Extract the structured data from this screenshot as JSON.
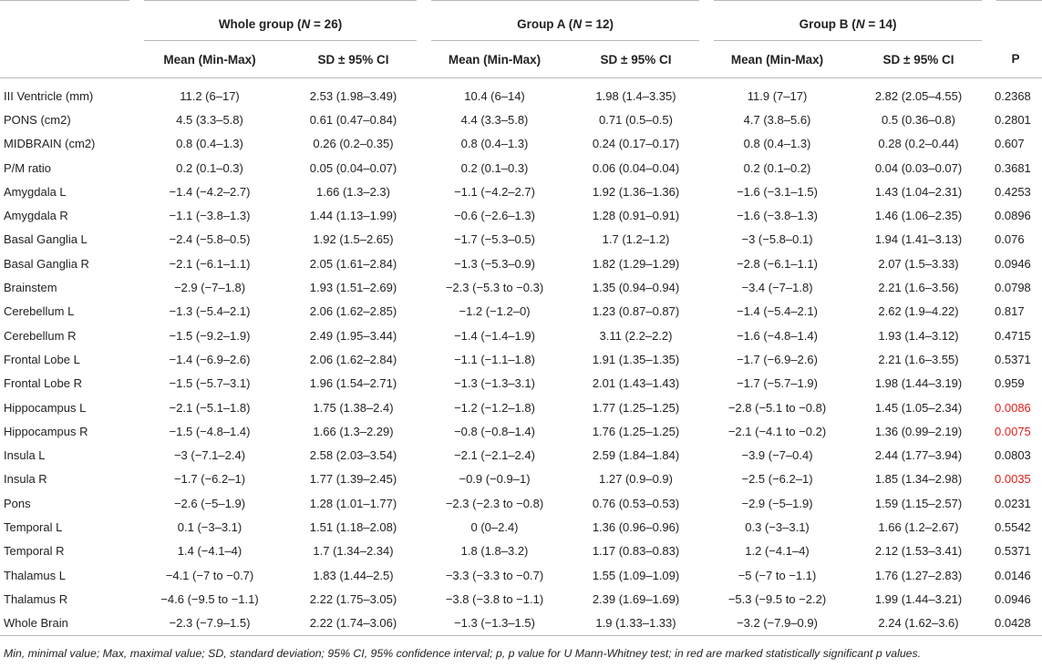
{
  "header": {
    "groups": [
      {
        "name": "Whole group (",
        "n_label": "N",
        "n_value": " = 26)"
      },
      {
        "name": "Group A (",
        "n_label": "N",
        "n_value": " = 12)"
      },
      {
        "name": "Group B (",
        "n_label": "N",
        "n_value": " = 14)"
      }
    ],
    "sub_mean": "Mean (Min-Max)",
    "sub_sd": "SD ± 95% CI",
    "sub_p": "P"
  },
  "rows": [
    {
      "label": "III Ventricle (mm)",
      "wg_mean": "11.2 (6–17)",
      "wg_sd": "2.53 (1.98–3.49)",
      "a_mean": "10.4 (6–14)",
      "a_sd": "1.98 (1.4–3.35)",
      "b_mean": "11.9 (7–17)",
      "b_sd": "2.82 (2.05–4.55)",
      "p": "0.2368",
      "sig": false
    },
    {
      "label": "PONS (cm2)",
      "wg_mean": "4.5 (3.3–5.8)",
      "wg_sd": "0.61 (0.47–0.84)",
      "a_mean": "4.4 (3.3–5.8)",
      "a_sd": "0.71 (0.5–0.5)",
      "b_mean": "4.7 (3.8–5.6)",
      "b_sd": "0.5 (0.36–0.8)",
      "p": "0.2801",
      "sig": false
    },
    {
      "label": "MIDBRAIN (cm2)",
      "wg_mean": "0.8 (0.4–1.3)",
      "wg_sd": "0.26 (0.2–0.35)",
      "a_mean": "0.8 (0.4–1.3)",
      "a_sd": "0.24 (0.17–0.17)",
      "b_mean": "0.8 (0.4–1.3)",
      "b_sd": "0.28 (0.2–0.44)",
      "p": "0.607",
      "sig": false
    },
    {
      "label": "P/M ratio",
      "wg_mean": "0.2 (0.1–0.3)",
      "wg_sd": "0.05 (0.04–0.07)",
      "a_mean": "0.2 (0.1–0.3)",
      "a_sd": "0.06 (0.04–0.04)",
      "b_mean": "0.2 (0.1–0.2)",
      "b_sd": "0.04 (0.03–0.07)",
      "p": "0.3681",
      "sig": false
    },
    {
      "label": "Amygdala L",
      "wg_mean": "−1.4 (−4.2–2.7)",
      "wg_sd": "1.66 (1.3–2.3)",
      "a_mean": "−1.1 (−4.2–2.7)",
      "a_sd": "1.92 (1.36–1.36)",
      "b_mean": "−1.6 (−3.1–1.5)",
      "b_sd": "1.43 (1.04–2.31)",
      "p": "0.4253",
      "sig": false
    },
    {
      "label": "Amygdala R",
      "wg_mean": "−1.1 (−3.8–1.3)",
      "wg_sd": "1.44 (1.13–1.99)",
      "a_mean": "−0.6 (−2.6–1.3)",
      "a_sd": "1.28 (0.91–0.91)",
      "b_mean": "−1.6 (−3.8–1.3)",
      "b_sd": "1.46 (1.06–2.35)",
      "p": "0.0896",
      "sig": false
    },
    {
      "label": "Basal Ganglia L",
      "wg_mean": "−2.4 (−5.8–0.5)",
      "wg_sd": "1.92 (1.5–2.65)",
      "a_mean": "−1.7 (−5.3–0.5)",
      "a_sd": "1.7 (1.2–1.2)",
      "b_mean": "−3 (−5.8–0.1)",
      "b_sd": "1.94 (1.41–3.13)",
      "p": "0.076",
      "sig": false
    },
    {
      "label": "Basal Ganglia R",
      "wg_mean": "−2.1 (−6.1–1.1)",
      "wg_sd": "2.05 (1.61–2.84)",
      "a_mean": "−1.3 (−5.3–0.9)",
      "a_sd": "1.82 (1.29–1.29)",
      "b_mean": "−2.8 (−6.1–1.1)",
      "b_sd": "2.07 (1.5–3.33)",
      "p": "0.0946",
      "sig": false
    },
    {
      "label": "Brainstem",
      "wg_mean": "−2.9 (−7–1.8)",
      "wg_sd": "1.93 (1.51–2.69)",
      "a_mean": "−2.3 (−5.3 to −0.3)",
      "a_sd": "1.35 (0.94–0.94)",
      "b_mean": "−3.4 (−7–1.8)",
      "b_sd": "2.21 (1.6–3.56)",
      "p": "0.0798",
      "sig": false
    },
    {
      "label": "Cerebellum L",
      "wg_mean": "−1.3 (−5.4–2.1)",
      "wg_sd": "2.06 (1.62–2.85)",
      "a_mean": "−1.2 (−1.2–0)",
      "a_sd": "1.23 (0.87–0.87)",
      "b_mean": "−1.4 (−5.4–2.1)",
      "b_sd": "2.62 (1.9–4.22)",
      "p": "0.817",
      "sig": false
    },
    {
      "label": "Cerebellum R",
      "wg_mean": "−1.5 (−9.2–1.9)",
      "wg_sd": "2.49 (1.95–3.44)",
      "a_mean": "−1.4 (−1.4–1.9)",
      "a_sd": "3.11 (2.2–2.2)",
      "b_mean": "−1.6 (−4.8–1.4)",
      "b_sd": "1.93 (1.4–3.12)",
      "p": "0.4715",
      "sig": false
    },
    {
      "label": "Frontal Lobe L",
      "wg_mean": "−1.4 (−6.9–2.6)",
      "wg_sd": "2.06 (1.62–2.84)",
      "a_mean": "−1.1 (−1.1–1.8)",
      "a_sd": "1.91 (1.35–1.35)",
      "b_mean": "−1.7 (−6.9–2.6)",
      "b_sd": "2.21 (1.6–3.55)",
      "p": "0.5371",
      "sig": false
    },
    {
      "label": "Frontal Lobe R",
      "wg_mean": "−1.5 (−5.7–3.1)",
      "wg_sd": "1.96 (1.54–2.71)",
      "a_mean": "−1.3 (−1.3–3.1)",
      "a_sd": "2.01 (1.43–1.43)",
      "b_mean": "−1.7 (−5.7–1.9)",
      "b_sd": "1.98 (1.44–3.19)",
      "p": "0.959",
      "sig": false
    },
    {
      "label": "Hippocampus L",
      "wg_mean": "−2.1 (−5.1–1.8)",
      "wg_sd": "1.75 (1.38–2.4)",
      "a_mean": "−1.2 (−1.2–1.8)",
      "a_sd": "1.77 (1.25–1.25)",
      "b_mean": "−2.8 (−5.1 to −0.8)",
      "b_sd": "1.45 (1.05–2.34)",
      "p": "0.0086",
      "sig": true
    },
    {
      "label": "Hippocampus R",
      "wg_mean": "−1.5 (−4.8–1.4)",
      "wg_sd": "1.66 (1.3–2.29)",
      "a_mean": "−0.8 (−0.8–1.4)",
      "a_sd": "1.76 (1.25–1.25)",
      "b_mean": "−2.1 (−4.1 to −0.2)",
      "b_sd": "1.36 (0.99–2.19)",
      "p": "0.0075",
      "sig": true
    },
    {
      "label": "Insula L",
      "wg_mean": "−3 (−7.1–2.4)",
      "wg_sd": "2.58 (2.03–3.54)",
      "a_mean": "−2.1 (−2.1–2.4)",
      "a_sd": "2.59 (1.84–1.84)",
      "b_mean": "−3.9 (−7–0.4)",
      "b_sd": "2.44 (1.77–3.94)",
      "p": "0.0803",
      "sig": false
    },
    {
      "label": "Insula R",
      "wg_mean": "−1.7 (−6.2–1)",
      "wg_sd": "1.77 (1.39–2.45)",
      "a_mean": "−0.9 (−0.9–1)",
      "a_sd": "1.27 (0.9–0.9)",
      "b_mean": "−2.5 (−6.2–1)",
      "b_sd": "1.85 (1.34–2.98)",
      "p": "0.0035",
      "sig": true
    },
    {
      "label": "Pons",
      "wg_mean": "−2.6 (−5–1.9)",
      "wg_sd": "1.28 (1.01–1.77)",
      "a_mean": "−2.3 (−2.3 to −0.8)",
      "a_sd": "0.76 (0.53–0.53)",
      "b_mean": "−2.9 (−5–1.9)",
      "b_sd": "1.59 (1.15–2.57)",
      "p": "0.0231",
      "sig": false
    },
    {
      "label": "Temporal L",
      "wg_mean": "0.1 (−3–3.1)",
      "wg_sd": "1.51 (1.18–2.08)",
      "a_mean": "0 (0–2.4)",
      "a_sd": "1.36 (0.96–0.96)",
      "b_mean": "0.3 (−3–3.1)",
      "b_sd": "1.66 (1.2–2.67)",
      "p": "0.5542",
      "sig": false
    },
    {
      "label": "Temporal R",
      "wg_mean": "1.4 (−4.1–4)",
      "wg_sd": "1.7 (1.34–2.34)",
      "a_mean": "1.8 (1.8–3.2)",
      "a_sd": "1.17 (0.83–0.83)",
      "b_mean": "1.2 (−4.1–4)",
      "b_sd": "2.12 (1.53–3.41)",
      "p": "0.5371",
      "sig": false
    },
    {
      "label": "Thalamus L",
      "wg_mean": "−4.1 (−7 to −0.7)",
      "wg_sd": "1.83 (1.44–2.5)",
      "a_mean": "−3.3 (−3.3 to −0.7)",
      "a_sd": "1.55 (1.09–1.09)",
      "b_mean": "−5 (−7 to −1.1)",
      "b_sd": "1.76 (1.27–2.83)",
      "p": "0.0146",
      "sig": false
    },
    {
      "label": "Thalamus R",
      "wg_mean": "−4.6 (−9.5 to −1.1)",
      "wg_sd": "2.22 (1.75–3.05)",
      "a_mean": "−3.8 (−3.8 to −1.1)",
      "a_sd": "2.39 (1.69–1.69)",
      "b_mean": "−5.3 (−9.5 to −2.2)",
      "b_sd": "1.99 (1.44–3.21)",
      "p": "0.0946",
      "sig": false
    },
    {
      "label": "Whole Brain",
      "wg_mean": "−2.3 (−7.9–1.5)",
      "wg_sd": "2.22 (1.74–3.06)",
      "a_mean": "−1.3 (−1.3–1.5)",
      "a_sd": "1.9 (1.33–1.33)",
      "b_mean": "−3.2 (−7.9–0.9)",
      "b_sd": "2.24 (1.62–3.6)",
      "p": "0.0428",
      "sig": false
    }
  ],
  "colors": {
    "significant": "#e0201b",
    "text": "#222222",
    "rule": "#b8b8b8"
  },
  "footnote": "Min, minimal value; Max, maximal value; SD, standard deviation; 95% CI, 95% confidence interval; p, p value for U Mann-Whitney test; in red are marked statistically significant p values."
}
